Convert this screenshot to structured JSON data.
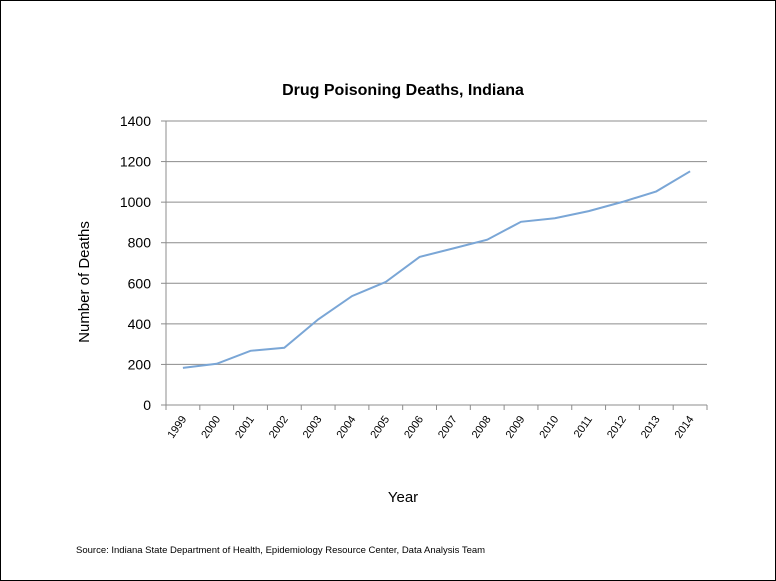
{
  "chart_data": {
    "type": "line",
    "title": "Drug Poisoning Deaths, Indiana",
    "xlabel": "Year",
    "ylabel": "Number of Deaths",
    "categories": [
      "1999",
      "2000",
      "2001",
      "2002",
      "2003",
      "2004",
      "2005",
      "2006",
      "2007",
      "2008",
      "2009",
      "2010",
      "2011",
      "2012",
      "2013",
      "2014"
    ],
    "series": [
      {
        "values": [
          183,
          203,
          267,
          282,
          422,
          537,
          607,
          730,
          772,
          815,
          903,
          921,
          956,
          1001,
          1053,
          1152
        ]
      }
    ],
    "ylim": [
      0,
      1400
    ],
    "yticks": [
      0,
      200,
      400,
      600,
      800,
      1000,
      1200,
      1400
    ],
    "grid": true,
    "legend": "none",
    "line_color": "#7aa6d6",
    "source": "Source:  Indiana  State  Department  of Health,  Epidemiology  Resource Center,  Data Analysis Team"
  }
}
